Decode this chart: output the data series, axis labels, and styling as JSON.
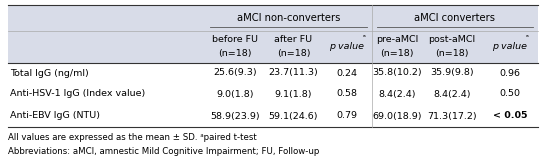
{
  "header_group1": "aMCI non-converters",
  "header_group2": "aMCI converters",
  "col_headers_line1": [
    "before FU",
    "after FU",
    "p valueᵃ",
    "pre-aMCI",
    "post-aMCI",
    "p valueᵃ"
  ],
  "col_headers_line2": [
    "(n=18)",
    "(n=18)",
    "",
    "(n=18)",
    "(n=18)",
    ""
  ],
  "row_labels": [
    "Total IgG (ng/ml)",
    "Anti-HSV-1 IgG (Index value)",
    "Anti-EBV IgG (NTU)"
  ],
  "data": [
    [
      "25.6(9.3)",
      "23.7(11.3)",
      "0.24",
      "35.8(10.2)",
      "35.9(9.8)",
      "0.96"
    ],
    [
      "9.0(1.8)",
      "9.1(1.8)",
      "0.58",
      "8.4(2.4)",
      "8.4(2.4)",
      "0.50"
    ],
    [
      "58.9(23.9)",
      "59.1(24.6)",
      "0.79",
      "69.0(18.9)",
      "71.3(17.2)",
      "< 0.05"
    ]
  ],
  "bold_last_row_last_col": true,
  "footnote1": "All values are expressed as the mean ± SD. ᵃpaired t-test",
  "footnote2": "Abbreviations: aMCI, amnestic Mild Cognitive Impairment; FU, Follow-up",
  "header_bg": "#d8dce8",
  "bg_color": "#ffffff",
  "fs": 6.8,
  "fs_header": 7.2,
  "fs_footnote": 6.2
}
